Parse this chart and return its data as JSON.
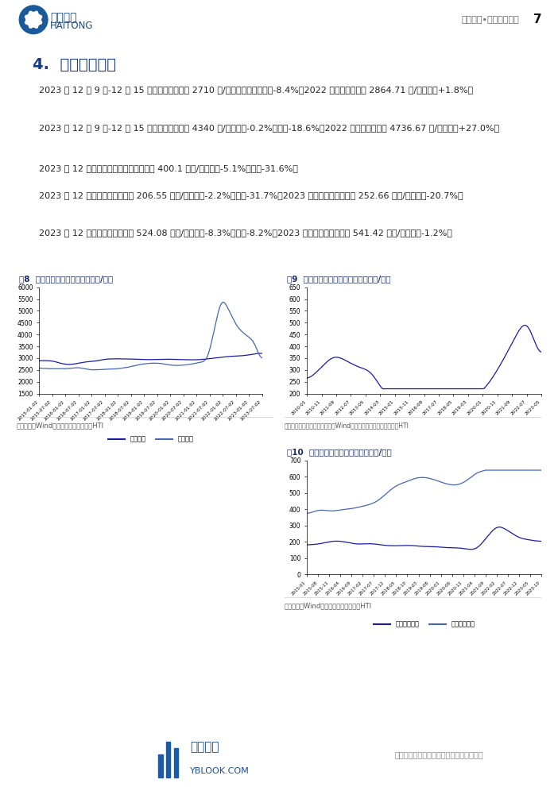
{
  "page_title": "4.  饲料价格走势",
  "header_right": "行业研究•食品加工行业",
  "page_num": "7",
  "para1": "    2023 年 12 月 9 日-12 月 15 日，玉米平均价为 2710 元/吨，环比持平，同比-8.4%；\n2022 年玉米平均价为 2864.71 元/吨，同比+1.8%。",
  "para2": "    2023 年 12 月 9 日-12 月 15 日，豆粕平均价为 4340 元/吨，环比-0.2%，同比-18.6%；\n2022 年豆粕平均价为 4736.67 元/吨，同比+27.0%。",
  "para3": "    2023 年 12 月，进口苜蓿草平均到岸价为 400.1 美元/吨，环比-5.1%，同比-31.6%。",
  "para4": "    2023 年 12 月，国际玉米价格为 206.55 美元/吨，环比-2.2%，同比-31.7%；2023 年\n国际玉米平均价为 252.66 美元/吨，同比-20.7%。",
  "para5": "    2023 年 12 月，国际豆粕价格为 524.08 美元/吨，环比-8.3%，同比-8.2%；2023 年国\n际豆粕平均价为 541.42 美元/吨，同比-1.2%。",
  "fig8_title": "图8  玉米、豆粕平均价格走势（元/吨）",
  "fig8_source": "资料来源：Wind，中国畜牧业信息网，HTI",
  "fig8_legend": [
    "玉米价格",
    "豆粕价格"
  ],
  "fig8_ylim": [
    1500,
    6000
  ],
  "fig8_yticks": [
    1500,
    2000,
    2500,
    3000,
    3500,
    4000,
    4500,
    5000,
    5500,
    6000
  ],
  "fig9_title": "图9  进口苜蓿草平均到岸价走势（美元/吨）",
  "fig9_source": "资料来源：东方戴瑞乳业咨询，Wind，奶业经济观察微信公众号，HTI",
  "fig9_ylim": [
    200,
    650
  ],
  "fig9_yticks": [
    200,
    250,
    300,
    350,
    400,
    450,
    500,
    550,
    600,
    650
  ],
  "fig10_title": "图10  国际玉米、豆粕价格走势（美元/吨）",
  "fig10_source": "资料来源：Wind，国际货币基金组织，HTI",
  "fig10_legend": [
    "全球玉米价格",
    "全球豆粕价格"
  ],
  "fig10_ylim": [
    0,
    700
  ],
  "fig10_yticks": [
    0,
    100,
    200,
    300,
    400,
    500,
    600,
    700
  ],
  "dark_blue": "#1a1aaa",
  "mid_blue": "#4455bb",
  "bg_color": "#ffffff",
  "footer_text": "请务必阅读正文之后的信息披露和法律声明"
}
